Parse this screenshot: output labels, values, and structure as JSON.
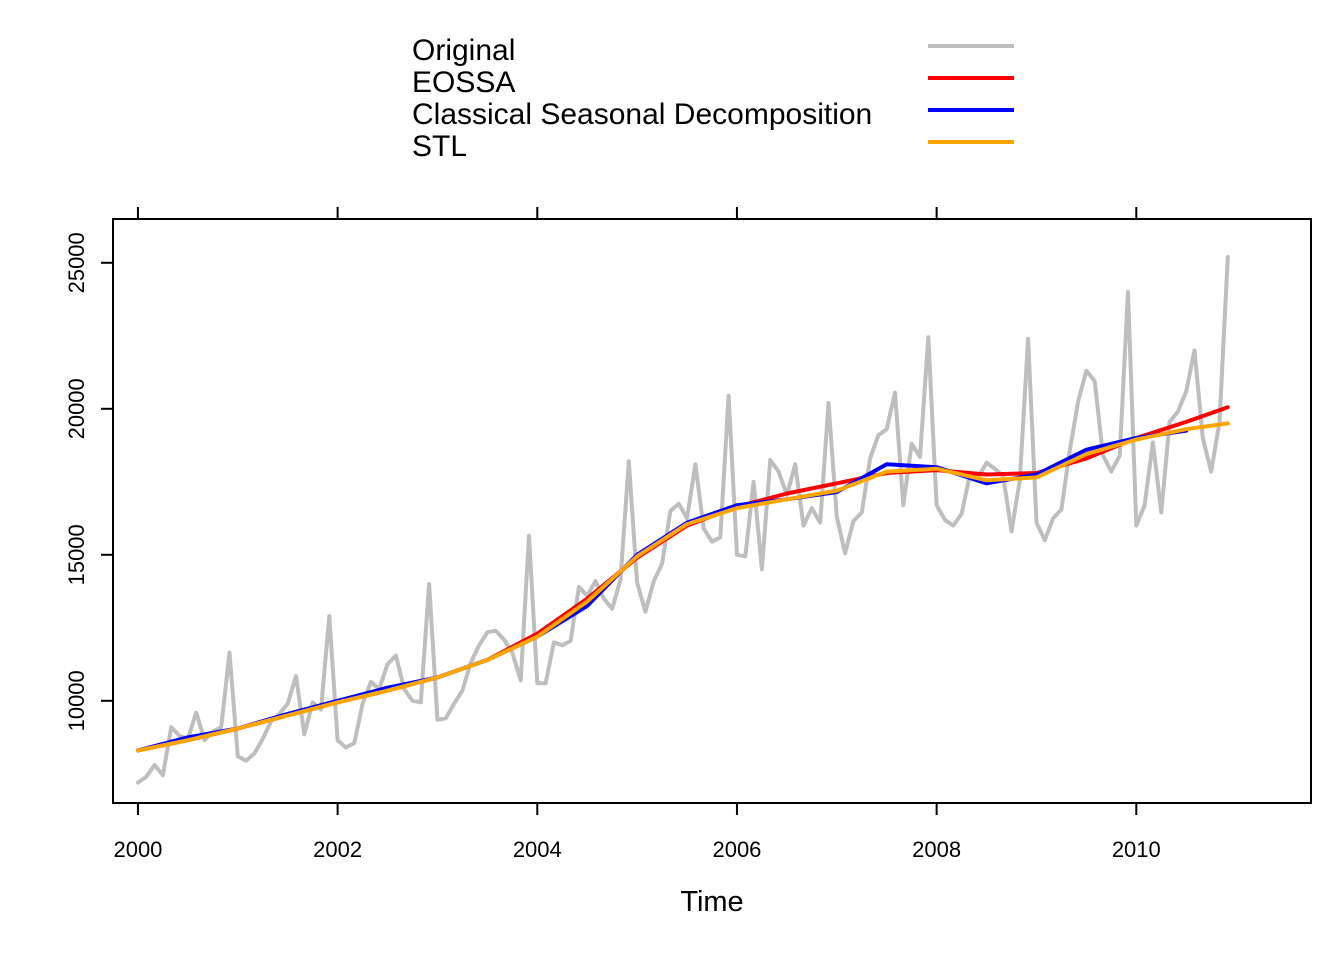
{
  "chart_data": {
    "type": "line",
    "xlabel": "Time",
    "ylabel": "",
    "xlim": [
      1999.75,
      2011.75
    ],
    "ylim": [
      6500,
      26500
    ],
    "x_ticks": [
      2000,
      2002,
      2004,
      2006,
      2008,
      2010
    ],
    "y_ticks": [
      10000,
      15000,
      20000,
      25000
    ],
    "x_tick_labels": [
      "2000",
      "2002",
      "2004",
      "2006",
      "2008",
      "2010"
    ],
    "y_tick_labels": [
      "10000",
      "15000",
      "20000",
      "25000"
    ],
    "grid": false,
    "legend_position": "top",
    "legend": [
      {
        "name": "Original",
        "color": "#bebebe"
      },
      {
        "name": "EOSSA",
        "color": "#ff0000"
      },
      {
        "name": "Classical Seasonal Decomposition",
        "color": "#0000ff"
      },
      {
        "name": "STL",
        "color": "#ffa500"
      }
    ],
    "series": [
      {
        "name": "Original",
        "color": "#bebebe",
        "x_start": 2000,
        "x_step": 0.08333,
        "values": [
          7200,
          7400,
          7800,
          7450,
          9100,
          8800,
          8700,
          9600,
          8650,
          8950,
          9100,
          11650,
          8100,
          7950,
          8200,
          8700,
          9300,
          9550,
          9900,
          10850,
          8850,
          9950,
          9700,
          12900,
          8650,
          8400,
          8550,
          9900,
          10650,
          10400,
          11250,
          11550,
          10400,
          10000,
          9950,
          14000,
          9350,
          9400,
          9900,
          10350,
          11300,
          11900,
          12350,
          12400,
          12100,
          11650,
          10700,
          15650,
          10600,
          10600,
          12000,
          11900,
          12050,
          13900,
          13600,
          14100,
          13500,
          13150,
          14150,
          18200,
          14050,
          13050,
          14100,
          14700,
          16500,
          16750,
          16250,
          18100,
          15900,
          15450,
          15600,
          20450,
          15000,
          14950,
          17500,
          14500,
          18250,
          17850,
          17050,
          18100,
          16000,
          16600,
          16100,
          20200,
          16300,
          15050,
          16150,
          16450,
          18300,
          19100,
          19300,
          20550,
          16700,
          18800,
          18350,
          22450,
          16700,
          16200,
          16000,
          16400,
          17750,
          17650,
          18150,
          17950,
          17700,
          15800,
          17550,
          22400,
          16100,
          15500,
          16250,
          16550,
          18550,
          20250,
          21300,
          20950,
          18400,
          17850,
          18400,
          24000,
          16000,
          16700,
          18850,
          16450,
          19550,
          19900,
          20600,
          22000,
          19000,
          17850,
          19550,
          25200
        ]
      },
      {
        "name": "EOSSA",
        "color": "#ff0000",
        "x": [
          2000,
          2000.5,
          2001,
          2001.5,
          2002,
          2002.5,
          2003,
          2003.5,
          2004,
          2004.5,
          2005,
          2005.5,
          2006,
          2006.5,
          2007,
          2007.5,
          2008,
          2008.5,
          2009,
          2009.5,
          2010,
          2010.5,
          2010.917
        ],
        "values": [
          8300,
          8650,
          9050,
          9500,
          9950,
          10350,
          10800,
          11400,
          12300,
          13500,
          14900,
          16000,
          16650,
          17100,
          17450,
          17800,
          17900,
          17750,
          17800,
          18300,
          19000,
          19550,
          20050
        ]
      },
      {
        "name": "Classical Seasonal Decomposition",
        "color": "#0000ff",
        "x": [
          2000,
          2000.5,
          2001,
          2001.5,
          2002,
          2002.5,
          2003,
          2003.5,
          2004,
          2004.5,
          2005,
          2005.5,
          2006,
          2006.5,
          2007,
          2007.5,
          2008,
          2008.5,
          2009,
          2009.5,
          2010,
          2010.5
        ],
        "values": [
          8300,
          8750,
          9050,
          9550,
          10000,
          10450,
          10800,
          11400,
          12200,
          13250,
          15000,
          16100,
          16700,
          16900,
          17150,
          18100,
          18000,
          17450,
          17750,
          18600,
          19000,
          19250
        ]
      },
      {
        "name": "STL",
        "color": "#ffa500",
        "x": [
          2000,
          2000.5,
          2001,
          2001.5,
          2002,
          2002.5,
          2003,
          2003.5,
          2004,
          2004.5,
          2005,
          2005.5,
          2006,
          2006.5,
          2007,
          2007.5,
          2008,
          2008.5,
          2009,
          2009.5,
          2010,
          2010.5,
          2010.917
        ],
        "values": [
          8300,
          8650,
          9050,
          9500,
          9950,
          10350,
          10800,
          11400,
          12200,
          13400,
          14950,
          16050,
          16600,
          16900,
          17200,
          17850,
          17950,
          17550,
          17650,
          18450,
          18950,
          19300,
          19500
        ]
      }
    ]
  }
}
